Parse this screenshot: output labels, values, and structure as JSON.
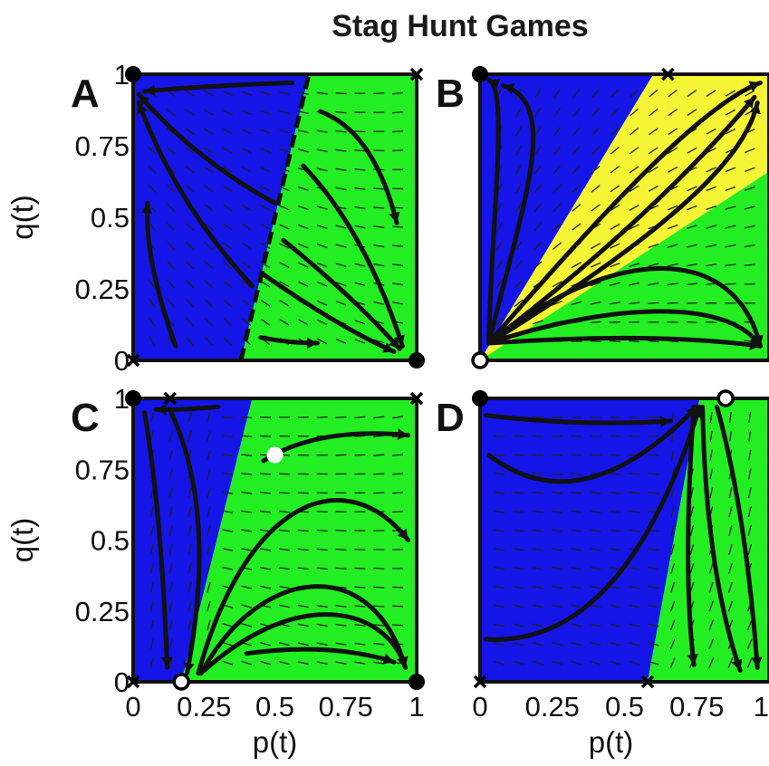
{
  "title": "Stag Hunt Games",
  "colors": {
    "blue": "#1515e8",
    "green": "#22ee22",
    "yellow": "#f5f535",
    "curve": "#111111",
    "field": "#222222"
  },
  "chart_data": [
    {
      "panel": "A",
      "type": "phase-portrait",
      "xlabel": "",
      "ylabel": "q(t)",
      "xlim": [
        0,
        1
      ],
      "ylim": [
        0,
        1
      ],
      "yticks": [
        "0",
        "0.25",
        "0.5",
        "0.75",
        "1"
      ],
      "xticks": [],
      "regions": [
        {
          "color": "blue",
          "polygon": [
            [
              0,
              0
            ],
            [
              0.38,
              0
            ],
            [
              0.62,
              1
            ],
            [
              0,
              1
            ]
          ]
        },
        {
          "color": "green",
          "polygon": [
            [
              0.38,
              0
            ],
            [
              1,
              0
            ],
            [
              1,
              1
            ],
            [
              0.62,
              1
            ]
          ]
        }
      ],
      "separatrix": [
        [
          0.38,
          0
        ],
        [
          0.62,
          1
        ]
      ],
      "trajectories": [
        [
          [
            0.56,
            0.97
          ],
          [
            0.25,
            0.96
          ],
          [
            0.04,
            0.94
          ]
        ],
        [
          [
            0.5,
            0.55
          ],
          [
            0.22,
            0.7
          ],
          [
            0.02,
            0.93
          ]
        ],
        [
          [
            0.42,
            0.26
          ],
          [
            0.15,
            0.55
          ],
          [
            0.02,
            0.9
          ]
        ],
        [
          [
            0.15,
            0.05
          ],
          [
            0.04,
            0.35
          ],
          [
            0.05,
            0.55
          ]
        ],
        [
          [
            0.66,
            0.87
          ],
          [
            0.85,
            0.8
          ],
          [
            0.93,
            0.48
          ]
        ],
        [
          [
            0.6,
            0.68
          ],
          [
            0.82,
            0.45
          ],
          [
            0.95,
            0.05
          ]
        ],
        [
          [
            0.53,
            0.42
          ],
          [
            0.78,
            0.22
          ],
          [
            0.94,
            0.04
          ]
        ],
        [
          [
            0.46,
            0.3
          ],
          [
            0.72,
            0.12
          ],
          [
            0.92,
            0.03
          ]
        ],
        [
          [
            0.45,
            0.08
          ],
          [
            0.55,
            0.06
          ],
          [
            0.65,
            0.06
          ]
        ]
      ],
      "markers": [
        {
          "x": 0,
          "y": 1,
          "kind": "stable"
        },
        {
          "x": 1,
          "y": 0,
          "kind": "stable"
        },
        {
          "x": 0,
          "y": 0,
          "kind": "saddle"
        },
        {
          "x": 1,
          "y": 1,
          "kind": "saddle"
        }
      ]
    },
    {
      "panel": "B",
      "type": "phase-portrait",
      "xlabel": "",
      "ylabel": "",
      "xlim": [
        0,
        1
      ],
      "ylim": [
        0,
        1
      ],
      "yticks": [],
      "xticks": [],
      "regions": [
        {
          "color": "blue",
          "polygon": [
            [
              0,
              0
            ],
            [
              0,
              1
            ],
            [
              0.6,
              1
            ]
          ]
        },
        {
          "color": "yellow",
          "polygon": [
            [
              0,
              0
            ],
            [
              0.6,
              1
            ],
            [
              1,
              1
            ],
            [
              1,
              0.66
            ]
          ]
        },
        {
          "color": "green",
          "polygon": [
            [
              0,
              0
            ],
            [
              1,
              0.66
            ],
            [
              1,
              0
            ]
          ]
        }
      ],
      "trajectories": [
        [
          [
            0.03,
            0.06
          ],
          [
            0.04,
            0.5
          ],
          [
            0.1,
            0.95
          ],
          [
            0.03,
            0.98
          ]
        ],
        [
          [
            0.03,
            0.06
          ],
          [
            0.15,
            0.55
          ],
          [
            0.28,
            0.9
          ],
          [
            0.08,
            0.96
          ]
        ],
        [
          [
            0.03,
            0.06
          ],
          [
            0.45,
            0.55
          ],
          [
            0.78,
            0.9
          ],
          [
            0.97,
            0.97
          ]
        ],
        [
          [
            0.03,
            0.06
          ],
          [
            0.6,
            0.5
          ],
          [
            0.95,
            0.92
          ]
        ],
        [
          [
            0.03,
            0.06
          ],
          [
            0.7,
            0.48
          ],
          [
            0.92,
            0.72
          ],
          [
            0.96,
            0.9
          ]
        ],
        [
          [
            0.03,
            0.06
          ],
          [
            0.45,
            0.4
          ],
          [
            0.88,
            0.42
          ],
          [
            0.97,
            0.05
          ]
        ],
        [
          [
            0.03,
            0.06
          ],
          [
            0.45,
            0.2
          ],
          [
            0.86,
            0.22
          ],
          [
            0.97,
            0.05
          ]
        ],
        [
          [
            0.03,
            0.06
          ],
          [
            0.6,
            0.1
          ],
          [
            0.97,
            0.05
          ]
        ]
      ],
      "markers": [
        {
          "x": 0,
          "y": 1,
          "kind": "stable"
        },
        {
          "x": 0,
          "y": 0,
          "kind": "unstable"
        },
        {
          "x": 0.65,
          "y": 1,
          "kind": "saddle"
        }
      ]
    },
    {
      "panel": "C",
      "type": "phase-portrait",
      "xlabel": "p(t)",
      "ylabel": "q(t)",
      "xlim": [
        0,
        1
      ],
      "ylim": [
        0,
        1
      ],
      "yticks": [
        "0",
        "0.25",
        "0.5",
        "0.75",
        "1"
      ],
      "xticks": [
        "0",
        "0.25",
        "0.5",
        "0.75",
        "1"
      ],
      "regions": [
        {
          "color": "blue",
          "polygon": [
            [
              0,
              0
            ],
            [
              0.17,
              0
            ],
            [
              0.42,
              1
            ],
            [
              0,
              1
            ]
          ]
        },
        {
          "color": "green",
          "polygon": [
            [
              0.17,
              0
            ],
            [
              1,
              0
            ],
            [
              1,
              1
            ],
            [
              0.42,
              1
            ]
          ]
        }
      ],
      "trajectories": [
        [
          [
            0.3,
            0.97
          ],
          [
            0.2,
            0.96
          ],
          [
            0.08,
            0.96
          ]
        ],
        [
          [
            0.04,
            0.95
          ],
          [
            0.1,
            0.6
          ],
          [
            0.12,
            0.05
          ]
        ],
        [
          [
            0.13,
            0.96
          ],
          [
            0.3,
            0.6
          ],
          [
            0.19,
            0.03
          ]
        ],
        [
          [
            0.46,
            0.78
          ],
          [
            0.65,
            0.9
          ],
          [
            0.97,
            0.87
          ]
        ],
        [
          [
            0.23,
            0.03
          ],
          [
            0.4,
            0.65
          ],
          [
            0.75,
            0.78
          ],
          [
            0.97,
            0.5
          ]
        ],
        [
          [
            0.24,
            0.03
          ],
          [
            0.45,
            0.42
          ],
          [
            0.85,
            0.45
          ],
          [
            0.96,
            0.05
          ]
        ],
        [
          [
            0.25,
            0.04
          ],
          [
            0.6,
            0.35
          ],
          [
            0.9,
            0.25
          ],
          [
            0.96,
            0.05
          ]
        ],
        [
          [
            0.4,
            0.1
          ],
          [
            0.7,
            0.14
          ],
          [
            0.92,
            0.07
          ]
        ]
      ],
      "markers": [
        {
          "x": 0,
          "y": 1,
          "kind": "stable"
        },
        {
          "x": 1,
          "y": 0,
          "kind": "stable"
        },
        {
          "x": 0.17,
          "y": 0,
          "kind": "unstable"
        },
        {
          "x": 0,
          "y": 0,
          "kind": "saddle"
        },
        {
          "x": 1,
          "y": 1,
          "kind": "saddle"
        },
        {
          "x": 0.13,
          "y": 1,
          "kind": "saddle"
        },
        {
          "x": 0.5,
          "y": 0.8,
          "kind": "white-dot"
        }
      ]
    },
    {
      "panel": "D",
      "type": "phase-portrait",
      "xlabel": "p(t)",
      "ylabel": "",
      "xlim": [
        0,
        1
      ],
      "ylim": [
        0,
        1
      ],
      "yticks": [],
      "xticks": [
        "0",
        "0.25",
        "0.5",
        "0.75",
        "1"
      ],
      "regions": [
        {
          "color": "blue",
          "polygon": [
            [
              0,
              0
            ],
            [
              0.58,
              0
            ],
            [
              0.76,
              1
            ],
            [
              0,
              1
            ]
          ]
        },
        {
          "color": "green",
          "polygon": [
            [
              0.58,
              0
            ],
            [
              1,
              0
            ],
            [
              1,
              1
            ],
            [
              0.76,
              1
            ]
          ]
        }
      ],
      "trajectories": [
        [
          [
            0.02,
            0.94
          ],
          [
            0.35,
            0.9
          ],
          [
            0.66,
            0.92
          ]
        ],
        [
          [
            0.03,
            0.8
          ],
          [
            0.35,
            0.55
          ],
          [
            0.75,
            0.97
          ]
        ],
        [
          [
            0.02,
            0.15
          ],
          [
            0.5,
            0.12
          ],
          [
            0.76,
            0.97
          ]
        ],
        [
          [
            0.74,
            0.97
          ],
          [
            0.7,
            0.4
          ],
          [
            0.74,
            0.06
          ]
        ],
        [
          [
            0.77,
            0.97
          ],
          [
            0.78,
            0.4
          ],
          [
            0.9,
            0.04
          ]
        ],
        [
          [
            0.82,
            0.97
          ],
          [
            0.92,
            0.6
          ],
          [
            0.96,
            0.05
          ]
        ]
      ],
      "markers": [
        {
          "x": 0,
          "y": 1,
          "kind": "stable"
        },
        {
          "x": 0.85,
          "y": 1,
          "kind": "unstable"
        },
        {
          "x": 0,
          "y": 0,
          "kind": "saddle"
        },
        {
          "x": 0.58,
          "y": 0,
          "kind": "saddle"
        }
      ]
    }
  ]
}
